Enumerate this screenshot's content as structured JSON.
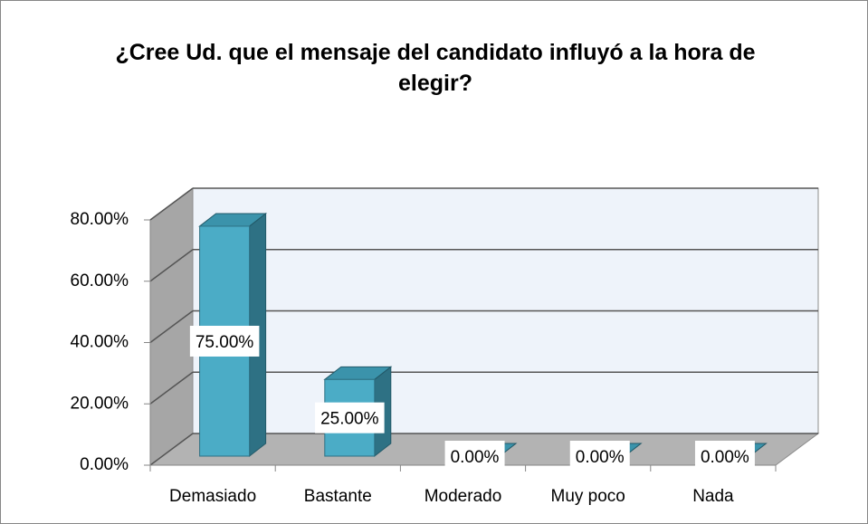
{
  "chart_data": {
    "type": "bar3d",
    "title": "¿Cree Ud. que el mensaje del candidato influyó a la hora de elegir?",
    "categories": [
      "Demasiado",
      "Bastante",
      "Moderado",
      "Muy poco",
      "Nada"
    ],
    "values": [
      75,
      25,
      0,
      0,
      0
    ],
    "value_labels": [
      "75.00%",
      "25.00%",
      "0.00%",
      "0.00%",
      "0.00%"
    ],
    "color": "#4bacc6",
    "ylim": [
      0,
      80
    ],
    "yticks": [
      {
        "value": 0,
        "label": "0.00%"
      },
      {
        "value": 20,
        "label": "20.00%"
      },
      {
        "value": 40,
        "label": "40.00%"
      },
      {
        "value": 60,
        "label": "60.00%"
      },
      {
        "value": 80,
        "label": "80.00%"
      }
    ],
    "grid": true
  }
}
